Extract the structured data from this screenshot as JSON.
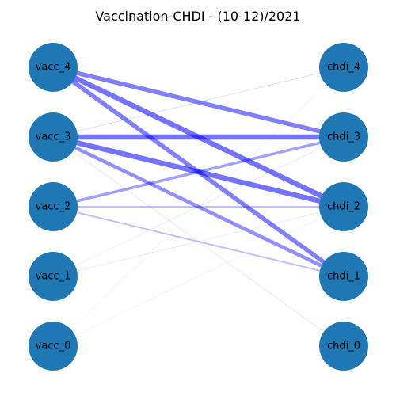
{
  "title": "Vaccination-CHDI - (10-12)/2021",
  "colors": {
    "node": "#1f77b4",
    "edge": "#0000ff",
    "background": "#ffffff",
    "label": "#000000"
  },
  "nodes": {
    "left": [
      "vacc_4",
      "vacc_3",
      "vacc_2",
      "vacc_1",
      "vacc_0"
    ],
    "right": [
      "chdi_4",
      "chdi_3",
      "chdi_2",
      "chdi_1",
      "chdi_0"
    ]
  },
  "edges": [
    {
      "source": "vacc_4",
      "target": "chdi_3",
      "weight": 0.85
    },
    {
      "source": "vacc_4",
      "target": "chdi_2",
      "weight": 1.0
    },
    {
      "source": "vacc_4",
      "target": "chdi_1",
      "weight": 0.85
    },
    {
      "source": "vacc_3",
      "target": "chdi_4",
      "weight": 0.12
    },
    {
      "source": "vacc_3",
      "target": "chdi_3",
      "weight": 1.0
    },
    {
      "source": "vacc_3",
      "target": "chdi_2",
      "weight": 1.0
    },
    {
      "source": "vacc_3",
      "target": "chdi_1",
      "weight": 0.7
    },
    {
      "source": "vacc_3",
      "target": "chdi_0",
      "weight": 0.1
    },
    {
      "source": "vacc_2",
      "target": "chdi_3",
      "weight": 0.55
    },
    {
      "source": "vacc_2",
      "target": "chdi_2",
      "weight": 0.3
    },
    {
      "source": "vacc_2",
      "target": "chdi_1",
      "weight": 0.3
    },
    {
      "source": "vacc_1",
      "target": "chdi_3",
      "weight": 0.08
    },
    {
      "source": "vacc_1",
      "target": "chdi_2",
      "weight": 0.08
    },
    {
      "source": "vacc_0",
      "target": "chdi_4",
      "weight": 0.05
    },
    {
      "source": "vacc_0",
      "target": "chdi_2",
      "weight": 0.05
    }
  ]
}
